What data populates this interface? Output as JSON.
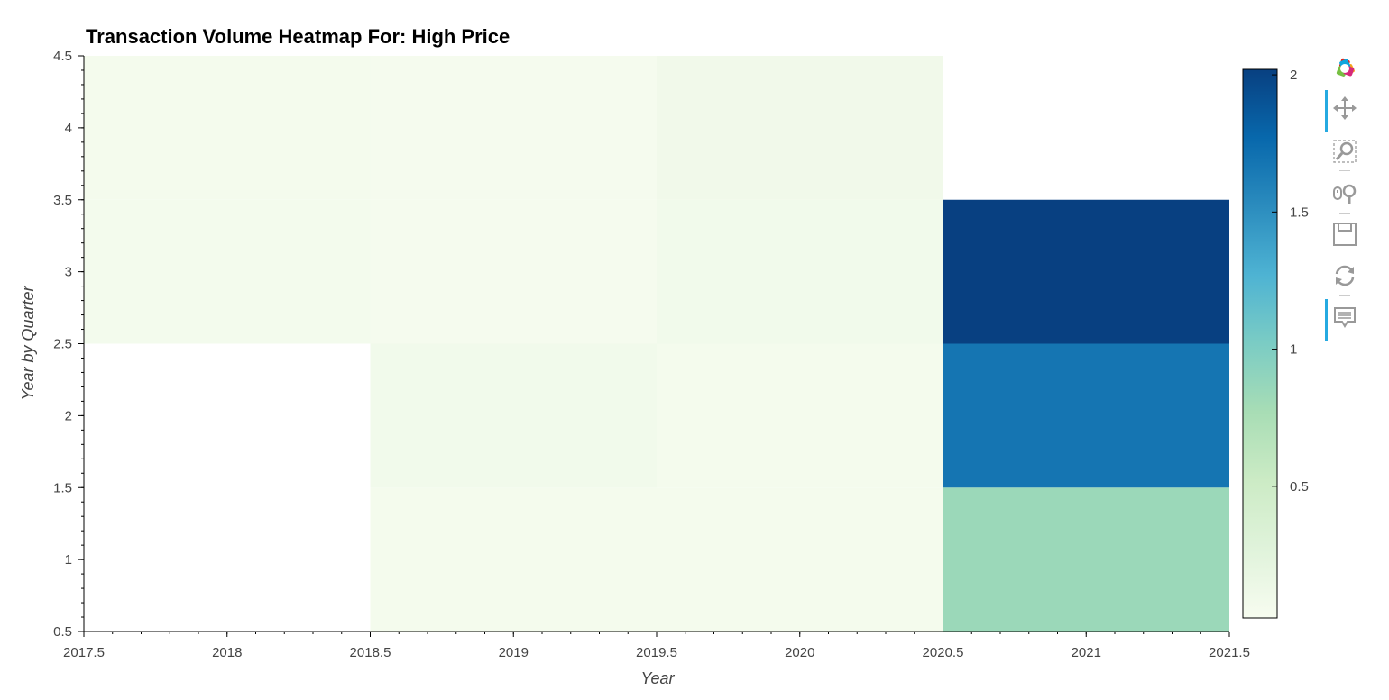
{
  "chart_data": {
    "type": "heatmap",
    "title": "Transaction Volume Heatmap For: High Price",
    "xlabel": "Year",
    "ylabel": "Year by Quarter",
    "xlim": [
      2017.5,
      2021.5
    ],
    "ylim": [
      0.5,
      4.5
    ],
    "x_categories": [
      2018,
      2019,
      2020,
      2021
    ],
    "y_categories": [
      1,
      2,
      3,
      4
    ],
    "x_ticks": [
      "2017.5",
      "2018",
      "2018.5",
      "2019",
      "2019.5",
      "2020",
      "2020.5",
      "2021",
      "2021.5"
    ],
    "y_ticks": [
      "0.5",
      "1",
      "1.5",
      "2",
      "2.5",
      "3",
      "3.5",
      "4",
      "4.5"
    ],
    "cells": [
      {
        "x": 2018,
        "y": 3,
        "value": 0.06
      },
      {
        "x": 2018,
        "y": 4,
        "value": 0.05
      },
      {
        "x": 2019,
        "y": 1,
        "value": 0.05
      },
      {
        "x": 2019,
        "y": 2,
        "value": 0.08
      },
      {
        "x": 2019,
        "y": 3,
        "value": 0.04
      },
      {
        "x": 2019,
        "y": 4,
        "value": 0.04
      },
      {
        "x": 2020,
        "y": 1,
        "value": 0.05
      },
      {
        "x": 2020,
        "y": 2,
        "value": 0.05
      },
      {
        "x": 2020,
        "y": 3,
        "value": 0.08
      },
      {
        "x": 2020,
        "y": 4,
        "value": 0.09
      },
      {
        "x": 2021,
        "y": 1,
        "value": 0.84
      },
      {
        "x": 2021,
        "y": 2,
        "value": 1.68
      },
      {
        "x": 2021,
        "y": 3,
        "value": 2.02
      }
    ],
    "colorbar": {
      "min": 0.02,
      "max": 2.02,
      "ticks": [
        "0.5",
        "1",
        "1.5",
        "2"
      ],
      "palette": [
        "#f7fcf0",
        "#e0f3db",
        "#ccebc5",
        "#a8ddb5",
        "#7bccc4",
        "#4eb3d3",
        "#2b8cbe",
        "#0868ac",
        "#084081"
      ]
    },
    "grid": false,
    "legend": "right"
  },
  "toolbar": {
    "tools": [
      {
        "name": "logo-icon",
        "active": false
      },
      {
        "name": "pan-icon",
        "active": true
      },
      {
        "name": "box-zoom-icon",
        "active": false
      },
      {
        "name": "wheel-zoom-icon",
        "active": false
      },
      {
        "name": "save-icon",
        "active": false
      },
      {
        "name": "reset-icon",
        "active": false
      },
      {
        "name": "hover-icon",
        "active": true
      }
    ]
  }
}
